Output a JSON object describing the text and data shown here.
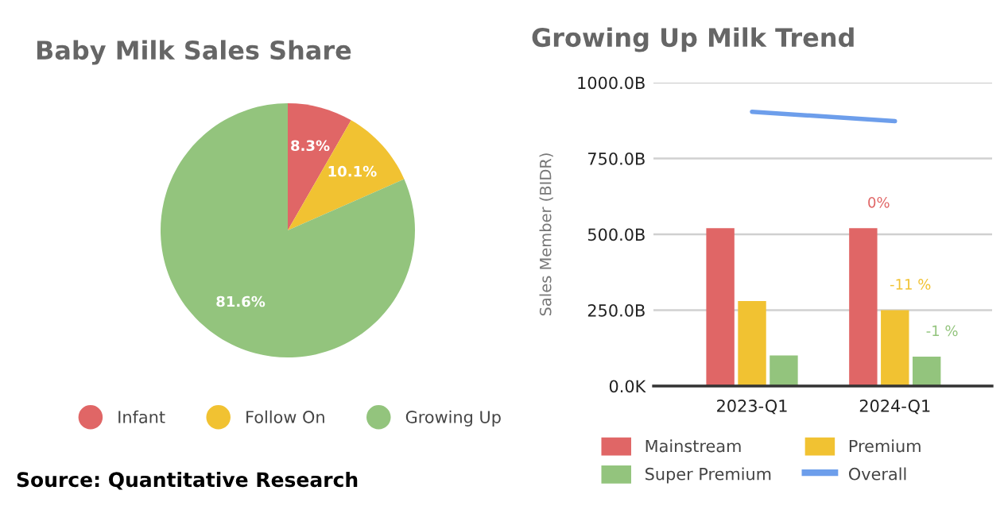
{
  "chart_data": [
    {
      "type": "pie",
      "title": "Baby Milk Sales Share",
      "categories": [
        "Infant",
        "Follow On",
        "Growing Up"
      ],
      "values": [
        8.3,
        10.1,
        81.6
      ],
      "colors": [
        "#e06666",
        "#f1c232",
        "#93c47d"
      ],
      "value_labels": [
        "8.3%",
        "10.1%",
        "81.6%"
      ],
      "legend": "bottom",
      "annotations": [
        "Source: Quantitative Research"
      ]
    },
    {
      "type": "bar",
      "title": "Growing Up Milk Trend",
      "ylabel": "Sales Member (BIDR)",
      "categories": [
        "2023-Q1",
        "2024-Q1"
      ],
      "series": [
        {
          "name": "Mainstream",
          "color": "#e06666",
          "values": [
            520,
            520
          ]
        },
        {
          "name": "Premium",
          "color": "#f1c232",
          "values": [
            280,
            250
          ]
        },
        {
          "name": "Super Premium",
          "color": "#93c47d",
          "values": [
            101,
            97
          ]
        },
        {
          "name": "Overall",
          "type": "line",
          "color": "#6d9eeb",
          "values": [
            904,
            873
          ]
        }
      ],
      "annotations": [
        "0%",
        "-11 %",
        "-1 %"
      ],
      "ylim": [
        0,
        1000
      ],
      "yticks": [
        {
          "value": 0,
          "label": "0.0K"
        },
        {
          "value": 250,
          "label": "250.0B"
        },
        {
          "value": 500,
          "label": "500.0B"
        },
        {
          "value": 750,
          "label": "750.0B"
        },
        {
          "value": 1000,
          "label": "1000.0B"
        }
      ],
      "grid": "y",
      "legend": "bottom"
    }
  ]
}
